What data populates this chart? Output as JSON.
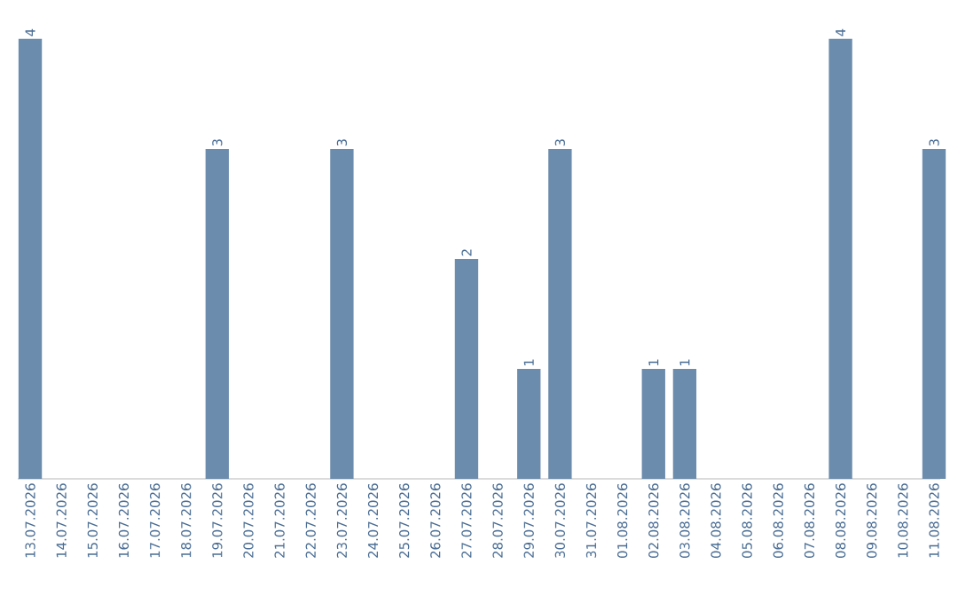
{
  "chart_data": {
    "type": "bar",
    "categories": [
      "13.07.2026",
      "14.07.2026",
      "15.07.2026",
      "16.07.2026",
      "17.07.2026",
      "18.07.2026",
      "19.07.2026",
      "20.07.2026",
      "21.07.2026",
      "22.07.2026",
      "23.07.2026",
      "24.07.2026",
      "25.07.2026",
      "26.07.2026",
      "27.07.2026",
      "28.07.2026",
      "29.07.2026",
      "30.07.2026",
      "31.07.2026",
      "01.08.2026",
      "02.08.2026",
      "03.08.2026",
      "04.08.2026",
      "05.08.2026",
      "06.08.2026",
      "07.08.2026",
      "08.08.2026",
      "09.08.2026",
      "10.08.2026",
      "11.08.2026"
    ],
    "values": [
      4,
      0,
      0,
      0,
      0,
      0,
      3,
      0,
      0,
      0,
      3,
      0,
      0,
      0,
      2,
      0,
      1,
      3,
      0,
      0,
      1,
      1,
      0,
      0,
      0,
      0,
      4,
      0,
      0,
      3
    ],
    "value_labels": [
      "4",
      null,
      null,
      null,
      null,
      null,
      "3",
      null,
      null,
      null,
      "3",
      null,
      null,
      null,
      "2",
      null,
      "1",
      "3",
      null,
      null,
      "1",
      "1",
      null,
      null,
      null,
      null,
      "4",
      null,
      null,
      "3"
    ],
    "color": "#6b8cac"
  }
}
